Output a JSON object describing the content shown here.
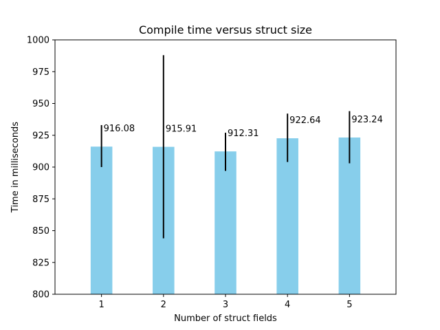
{
  "chart_data": {
    "type": "bar",
    "title": "Compile time versus struct size",
    "xlabel": "Number of struct fields",
    "ylabel": "Time in milliseconds",
    "categories": [
      "1",
      "2",
      "3",
      "4",
      "5"
    ],
    "values": [
      916.08,
      915.91,
      912.31,
      922.64,
      923.24
    ],
    "value_labels": [
      "916.08",
      "915.91",
      "912.31",
      "922.64",
      "923.24"
    ],
    "error_low": [
      900,
      844,
      897,
      904,
      903
    ],
    "error_high": [
      933,
      988,
      927,
      942,
      944
    ],
    "ylim": [
      800,
      1000
    ],
    "yticks": [
      800,
      825,
      850,
      875,
      900,
      925,
      950,
      975,
      1000
    ],
    "ytick_labels": [
      "800",
      "825",
      "850",
      "875",
      "900",
      "925",
      "950",
      "975",
      "1000"
    ],
    "grid": false,
    "bar_color": "#87ceeb",
    "error_color": "#000000"
  }
}
